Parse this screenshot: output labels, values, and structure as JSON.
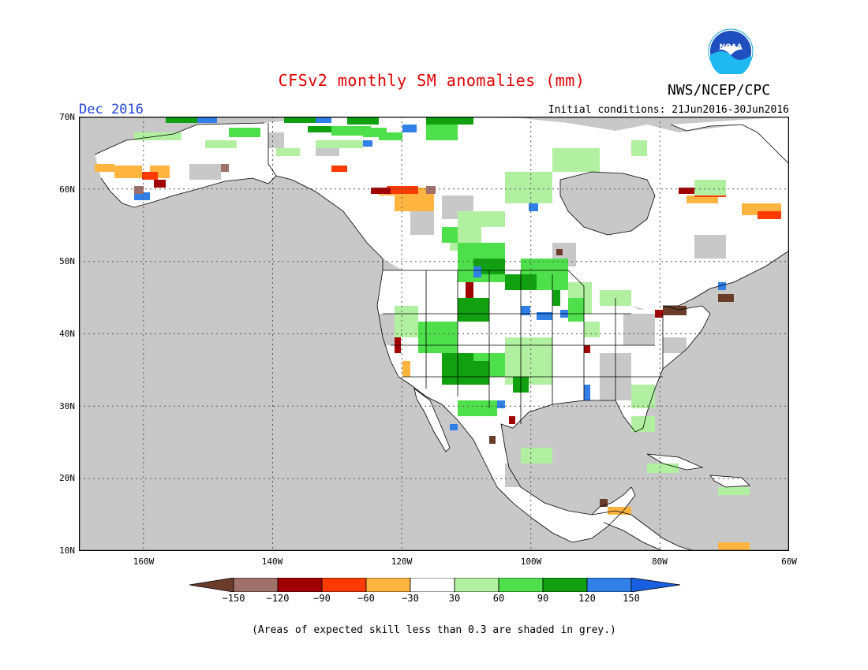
{
  "header": {
    "title": "CFSv2 monthly SM anomalies (mm)",
    "org": "NWS/NCEP/CPC",
    "logo_text": "NOAA",
    "valid_month": "Dec 2016",
    "init_conditions": "Initial conditions: 21Jun2016-30Jun2016"
  },
  "map": {
    "projection": "lat-lon",
    "lon_range": [
      -170,
      -60
    ],
    "lat_range": [
      10,
      70
    ],
    "lat_ticks": [
      "70N",
      "60N",
      "50N",
      "40N",
      "30N",
      "20N",
      "10N"
    ],
    "lon_ticks": [
      "160W",
      "140W",
      "120W",
      "100W",
      "80W",
      "60W"
    ],
    "grid": "dotted",
    "background_grey": "#c8c8c8",
    "land_white": "#ffffff"
  },
  "legend": {
    "labels": [
      "−150",
      "−120",
      "−90",
      "−60",
      "−30",
      "30",
      "60",
      "90",
      "120",
      "150"
    ],
    "colors": [
      "#6b3c2a",
      "#a0706a",
      "#a00000",
      "#ff3a00",
      "#ffb440",
      "#ffffff",
      "#b0f0a0",
      "#4ee04a",
      "#10a010",
      "#3080e8",
      "#1860e0"
    ]
  },
  "footnote": "(Areas of expected skill less than 0.3 are shaded in grey.)"
}
